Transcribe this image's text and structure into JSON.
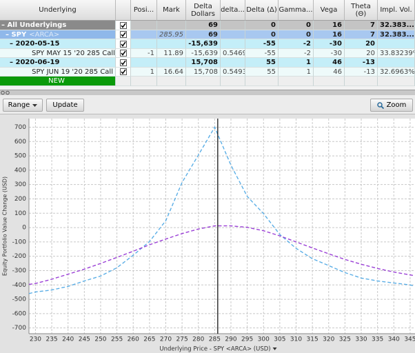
{
  "table": {
    "columns": [
      "Underlying",
      "Posi...",
      "Mark",
      "Delta Dollars",
      "delta...",
      "Delta (Δ)",
      "Gamma...",
      "Vega",
      "Theta (Θ)",
      "Impl. Vol."
    ],
    "rows": [
      {
        "label": "All Underlyings",
        "cells": [
          null,
          null,
          "69",
          null,
          "0",
          "0",
          "16",
          "7",
          "32.383..."
        ]
      },
      {
        "label": "SPY",
        "exchange": "<ARCA>",
        "cells": [
          null,
          "285.95",
          "69",
          null,
          "0",
          "0",
          "16",
          "7",
          "32.383..."
        ]
      },
      {
        "label": "2020-05-15",
        "cells": [
          null,
          null,
          "-15,639",
          null,
          "-55",
          "-2",
          "-30",
          "20",
          null
        ]
      },
      {
        "label": "SPY MAY 15 '20 285 Call",
        "cells": [
          "-1",
          "11.89",
          "-15,639",
          "0.5469",
          "-55",
          "-2",
          "-30",
          "20",
          "33.83239%"
        ]
      },
      {
        "label": "2020-06-19",
        "cells": [
          null,
          null,
          "15,708",
          null,
          "55",
          "1",
          "46",
          "-13",
          null
        ]
      },
      {
        "label": "SPY JUN 19 '20 285 Call",
        "cells": [
          "1",
          "16.64",
          "15,708",
          "0.5493",
          "55",
          "1",
          "46",
          "-13",
          "32.6963%"
        ]
      },
      {
        "label": "NEW"
      }
    ]
  },
  "toolbar": {
    "range": "Range",
    "update": "Update",
    "zoom": "Zoom"
  },
  "chart_data": {
    "type": "line",
    "y_label": "Equity Portfolio Value Change (USD)",
    "x_label": "Underlying Price - SPY <ARCA> (USD)",
    "x": [
      228,
      230,
      235,
      240,
      245,
      250,
      255,
      260,
      265,
      270,
      275,
      280,
      285,
      290,
      295,
      300,
      305,
      310,
      315,
      320,
      325,
      330,
      335,
      340,
      345,
      346
    ],
    "series": [
      {
        "color": "#5aaee6",
        "values": [
          -460,
          -449,
          -435,
          -410,
          -372,
          -338,
          -280,
          -193,
          -97,
          48,
          315,
          505,
          700,
          435,
          217,
          97,
          -48,
          -145,
          -217,
          -265,
          -314,
          -352,
          -372,
          -386,
          -400,
          -405
        ]
      },
      {
        "color": "#9a3fd6",
        "values": [
          -396,
          -390,
          -360,
          -325,
          -290,
          -250,
          -208,
          -165,
          -120,
          -80,
          -42,
          -10,
          12,
          12,
          2,
          -22,
          -58,
          -100,
          -142,
          -183,
          -222,
          -256,
          -285,
          -310,
          -330,
          -334
        ]
      }
    ],
    "current_price": 285.95,
    "xlim": [
      228,
      346.5
    ],
    "ylim": [
      -740,
      760
    ],
    "xticks": [
      230,
      235,
      240,
      245,
      250,
      255,
      260,
      265,
      270,
      275,
      280,
      285,
      290,
      295,
      300,
      305,
      310,
      315,
      320,
      325,
      330,
      335,
      340,
      345
    ],
    "yticks": [
      700,
      600,
      500,
      400,
      300,
      200,
      100,
      0,
      -100,
      -200,
      -300,
      -400,
      -500,
      -600,
      -700
    ],
    "grid": true
  }
}
